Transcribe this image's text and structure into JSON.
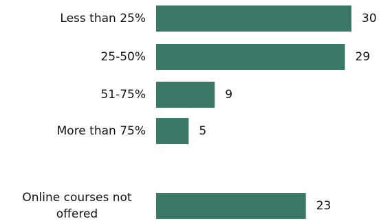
{
  "colors": {
    "bar": "#3a7867",
    "text": "#111111",
    "background": "#ffffff"
  },
  "chart_data": {
    "type": "bar",
    "orientation": "horizontal",
    "title": "",
    "xlabel": "",
    "ylabel": "",
    "grid": false,
    "legend": "none",
    "xlim": [
      0,
      30
    ],
    "categories": [
      {
        "label_lines": [
          "Less than 25%"
        ]
      },
      {
        "label_lines": [
          "25-50%"
        ]
      },
      {
        "label_lines": [
          "51-75%"
        ]
      },
      {
        "label_lines": [
          "More than 75%"
        ]
      },
      {
        "label_lines": [
          "Online courses not",
          "offered"
        ]
      }
    ],
    "values": [
      30,
      29,
      9,
      5,
      23
    ],
    "data_labels": [
      "30",
      "29",
      "9",
      "5",
      "23"
    ]
  }
}
